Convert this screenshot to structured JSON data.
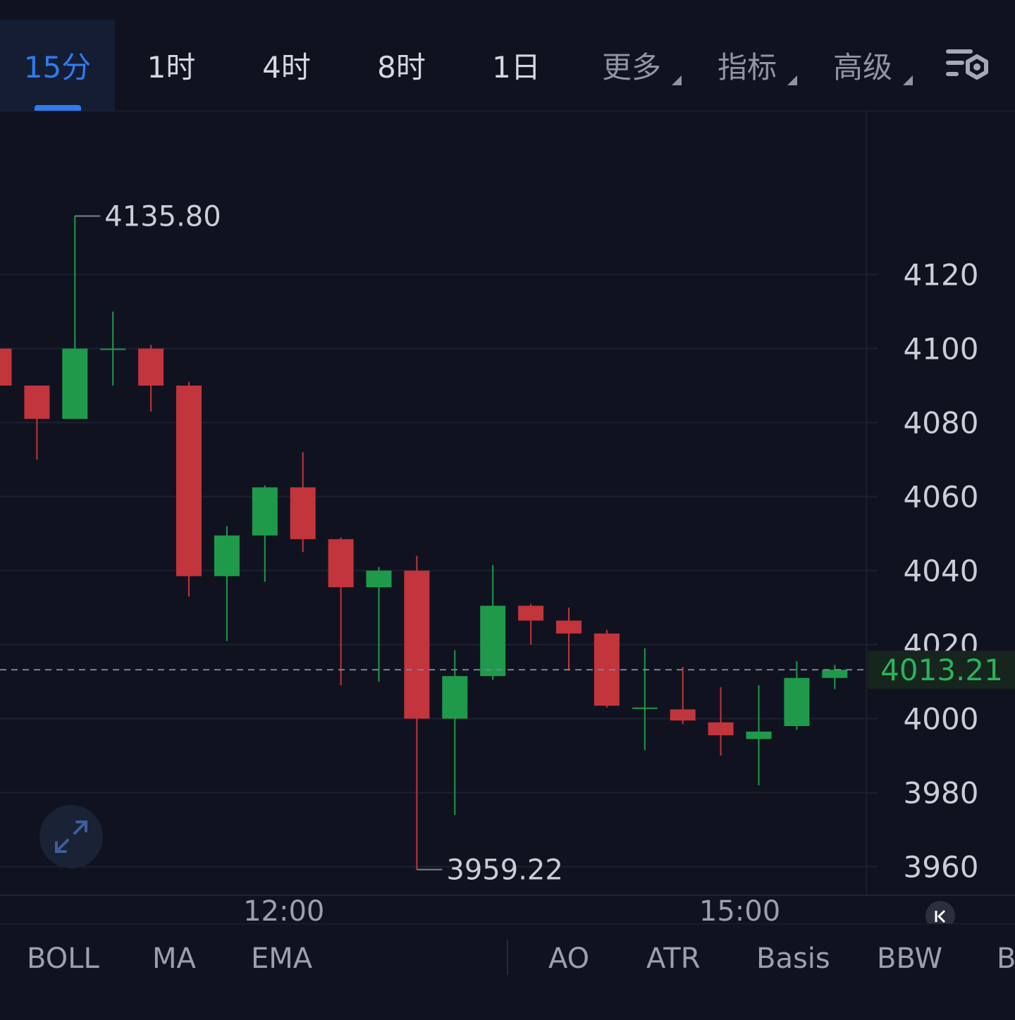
{
  "tabs": [
    {
      "label": "15分",
      "active": true
    },
    {
      "label": "1时"
    },
    {
      "label": "4时"
    },
    {
      "label": "8时"
    },
    {
      "label": "1日"
    },
    {
      "label": "更多",
      "dropdown": true
    },
    {
      "label": "指标",
      "dropdown": true
    },
    {
      "label": "高级",
      "dropdown": true
    }
  ],
  "settings_icon": "chart-settings-icon",
  "expand_icon": "expand-arrows-icon",
  "scroll_latest_icon": "scroll-to-latest-icon",
  "colors": {
    "up": "#1f9a4a",
    "down": "#c2353c",
    "accent": "#2f7bf0",
    "background": "#10131f",
    "last_price_badge_bg": "#16251d",
    "last_price_text": "#2bb359"
  },
  "chart_data": {
    "type": "candlestick",
    "y_ticks": [
      "4120",
      "4100",
      "4080",
      "4060",
      "4040",
      "4020",
      "4000",
      "3980",
      "3960"
    ],
    "y_tick_values": [
      4120,
      4100,
      4080,
      4060,
      4040,
      4020,
      4000,
      3980,
      3960
    ],
    "ylim": [
      3952,
      4135.8
    ],
    "x_ticks": [
      {
        "label": "12:00",
        "index": 7.5
      },
      {
        "label": "15:00",
        "index": 19.5
      }
    ],
    "high_label": "4135.80",
    "low_label": "3959.22",
    "last_price": "4013.21",
    "last_price_value": 4013.21,
    "candles": [
      {
        "o": 4100,
        "h": 4100,
        "l": 4090,
        "c": 4090
      },
      {
        "o": 4090,
        "h": 4090,
        "l": 4070,
        "c": 4081
      },
      {
        "o": 4081,
        "h": 4135.8,
        "l": 4081,
        "c": 4100
      },
      {
        "o": 4100,
        "h": 4110,
        "l": 4090,
        "c": 4100
      },
      {
        "o": 4100,
        "h": 4101,
        "l": 4083,
        "c": 4090
      },
      {
        "o": 4090,
        "h": 4091,
        "l": 4033,
        "c": 4038.5
      },
      {
        "o": 4038.5,
        "h": 4052,
        "l": 4021,
        "c": 4049.5
      },
      {
        "o": 4049.5,
        "h": 4063,
        "l": 4037,
        "c": 4062.5
      },
      {
        "o": 4062.5,
        "h": 4072,
        "l": 4045,
        "c": 4048.5
      },
      {
        "o": 4048.5,
        "h": 4049,
        "l": 4009,
        "c": 4035.5
      },
      {
        "o": 4035.5,
        "h": 4041,
        "l": 4010,
        "c": 4040
      },
      {
        "o": 4040,
        "h": 4044,
        "l": 3959.22,
        "c": 4000
      },
      {
        "o": 4000,
        "h": 4018.5,
        "l": 3974,
        "c": 4011.5
      },
      {
        "o": 4011.5,
        "h": 4041.5,
        "l": 4010.5,
        "c": 4030.5
      },
      {
        "o": 4030.5,
        "h": 4031,
        "l": 4020,
        "c": 4026.5
      },
      {
        "o": 4026.5,
        "h": 4030,
        "l": 4013,
        "c": 4023
      },
      {
        "o": 4023,
        "h": 4024,
        "l": 4003,
        "c": 4003.5
      },
      {
        "o": 4003,
        "h": 4019,
        "l": 3991.5,
        "c": 4003
      },
      {
        "o": 4002.5,
        "h": 4014,
        "l": 3998.5,
        "c": 3999.5
      },
      {
        "o": 3999,
        "h": 4008.5,
        "l": 3990,
        "c": 3995.5
      },
      {
        "o": 3994.5,
        "h": 4009,
        "l": 3982,
        "c": 3996.5
      },
      {
        "o": 3998,
        "h": 4015.5,
        "l": 3997,
        "c": 4011
      },
      {
        "o": 4011,
        "h": 4014.5,
        "l": 4008,
        "c": 4013.21
      }
    ]
  },
  "indicators": {
    "main": [
      "BOLL",
      "MA",
      "EMA"
    ],
    "sub": [
      "AO",
      "ATR",
      "Basis",
      "BBW",
      "B"
    ]
  }
}
